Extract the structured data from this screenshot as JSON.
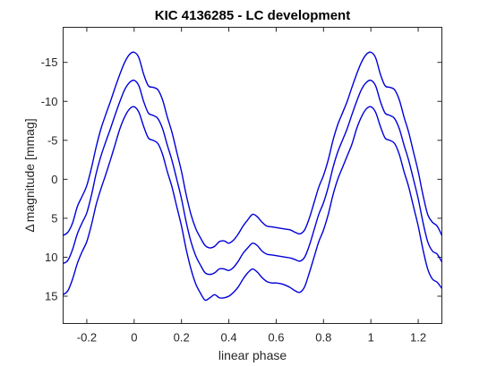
{
  "chart_data": {
    "type": "line",
    "title": "KIC 4136285 - LC development",
    "xlabel": "linear phase",
    "ylabel_symbol": "Δ",
    "ylabel_text": "magnitude [mmag]",
    "xlim": [
      -0.3,
      1.3
    ],
    "ylim": [
      -19.5,
      18.5
    ],
    "y_reversed": true,
    "grid": false,
    "line_color": "#0000d8",
    "xticks": [
      -0.2,
      0,
      0.2,
      0.4,
      0.6,
      0.8,
      1,
      1.2
    ],
    "xtick_labels": [
      "-0.2",
      "0",
      "0.2",
      "0.4",
      "0.6",
      "0.8",
      "1",
      "1.2"
    ],
    "yticks": [
      -15,
      -10,
      -5,
      0,
      5,
      10,
      15
    ],
    "ytick_labels": [
      "-15",
      "-10",
      "-5",
      "0",
      "5",
      "10",
      "15"
    ],
    "series": [
      {
        "x": [
          -0.3,
          -0.28,
          -0.26,
          -0.24,
          -0.22,
          -0.2,
          -0.18,
          -0.16,
          -0.14,
          -0.12,
          -0.1,
          -0.08,
          -0.06,
          -0.04,
          -0.02,
          0,
          0.02,
          0.04,
          0.06,
          0.08,
          0.1,
          0.12,
          0.14,
          0.16,
          0.18,
          0.2,
          0.22,
          0.24,
          0.26,
          0.28,
          0.3,
          0.32,
          0.34,
          0.36,
          0.38,
          0.4,
          0.42,
          0.44,
          0.46,
          0.48,
          0.5,
          0.52,
          0.54,
          0.56,
          0.58,
          0.6,
          0.62,
          0.64,
          0.66,
          0.68,
          0.7,
          0.72,
          0.74,
          0.76,
          0.78,
          0.8,
          0.82,
          0.84,
          0.86,
          0.88,
          0.9,
          0.92,
          0.94,
          0.96,
          0.98,
          1,
          1.02,
          1.04,
          1.06,
          1.08,
          1.1,
          1.12,
          1.14,
          1.16,
          1.18,
          1.2,
          1.22,
          1.24,
          1.26,
          1.28,
          1.3
        ],
        "y": [
          7.2,
          6.8,
          5.6,
          3.5,
          2.2,
          0.8,
          -1.5,
          -4.2,
          -6.5,
          -8.3,
          -10,
          -11.8,
          -13.5,
          -15,
          -16,
          -16.3,
          -15.6,
          -13.5,
          -12,
          -11.8,
          -11.5,
          -10.2,
          -8,
          -6,
          -3.5,
          -1,
          2,
          4.5,
          6.3,
          7.5,
          8.5,
          8.8,
          8.6,
          8,
          7.9,
          8.2,
          7.8,
          7,
          6,
          5.2,
          4.5,
          4.8,
          5.5,
          6,
          6.1,
          6.2,
          6.3,
          6.4,
          6.5,
          6.8,
          7,
          6.5,
          5,
          3,
          1,
          -0.5,
          -2.5,
          -5,
          -7,
          -8.5,
          -10,
          -11.8,
          -13.5,
          -15,
          -16,
          -16.3,
          -15.6,
          -13.5,
          -12,
          -11.8,
          -11.5,
          -10.2,
          -8,
          -6,
          -3.5,
          -1,
          2,
          4.5,
          5.5,
          6,
          7.2
        ]
      },
      {
        "x": [
          -0.3,
          -0.28,
          -0.26,
          -0.24,
          -0.22,
          -0.2,
          -0.18,
          -0.16,
          -0.14,
          -0.12,
          -0.1,
          -0.08,
          -0.06,
          -0.04,
          -0.02,
          0,
          0.02,
          0.04,
          0.06,
          0.08,
          0.1,
          0.12,
          0.14,
          0.16,
          0.18,
          0.2,
          0.22,
          0.24,
          0.26,
          0.28,
          0.3,
          0.32,
          0.34,
          0.36,
          0.38,
          0.4,
          0.42,
          0.44,
          0.46,
          0.48,
          0.5,
          0.52,
          0.54,
          0.56,
          0.58,
          0.6,
          0.62,
          0.64,
          0.66,
          0.68,
          0.7,
          0.72,
          0.74,
          0.76,
          0.78,
          0.8,
          0.82,
          0.84,
          0.86,
          0.88,
          0.9,
          0.92,
          0.94,
          0.96,
          0.98,
          1,
          1.02,
          1.04,
          1.06,
          1.08,
          1.1,
          1.12,
          1.14,
          1.16,
          1.18,
          1.2,
          1.22,
          1.24,
          1.26,
          1.28,
          1.3
        ],
        "y": [
          10.8,
          10.4,
          9,
          7,
          5.6,
          4.3,
          2,
          -0.8,
          -3,
          -4.8,
          -6.5,
          -8.3,
          -10,
          -11.5,
          -12.4,
          -12.7,
          -12,
          -10,
          -8.5,
          -8.2,
          -7.8,
          -6.5,
          -4.4,
          -2.4,
          0,
          2.5,
          5.5,
          8,
          9.8,
          11,
          12,
          12.2,
          12,
          11.5,
          11.5,
          11.7,
          11.3,
          10.5,
          9.5,
          8.8,
          8.2,
          8.5,
          9.2,
          9.6,
          9.7,
          9.8,
          9.9,
          10,
          10.1,
          10.3,
          10.5,
          10,
          8.5,
          6.5,
          4.5,
          3,
          1,
          -1.5,
          -3.5,
          -5,
          -6.5,
          -8.3,
          -10,
          -11.5,
          -12.4,
          -12.7,
          -12,
          -10,
          -8.5,
          -8.2,
          -7.8,
          -6.5,
          -4.4,
          -2.4,
          0,
          2.5,
          5.5,
          8,
          9.2,
          9.6,
          10.6
        ]
      },
      {
        "x": [
          -0.3,
          -0.28,
          -0.26,
          -0.24,
          -0.22,
          -0.2,
          -0.18,
          -0.16,
          -0.14,
          -0.12,
          -0.1,
          -0.08,
          -0.06,
          -0.04,
          -0.02,
          0,
          0.02,
          0.04,
          0.06,
          0.08,
          0.1,
          0.12,
          0.14,
          0.16,
          0.18,
          0.2,
          0.22,
          0.24,
          0.26,
          0.28,
          0.3,
          0.32,
          0.34,
          0.36,
          0.38,
          0.4,
          0.42,
          0.44,
          0.46,
          0.48,
          0.5,
          0.52,
          0.54,
          0.56,
          0.58,
          0.6,
          0.62,
          0.64,
          0.66,
          0.68,
          0.7,
          0.72,
          0.74,
          0.76,
          0.78,
          0.8,
          0.82,
          0.84,
          0.86,
          0.88,
          0.9,
          0.92,
          0.94,
          0.96,
          0.98,
          1,
          1.02,
          1.04,
          1.06,
          1.08,
          1.1,
          1.12,
          1.14,
          1.16,
          1.18,
          1.2,
          1.22,
          1.24,
          1.26,
          1.28,
          1.3
        ],
        "y": [
          14.8,
          14.3,
          12.8,
          10.8,
          9.3,
          8,
          5.8,
          3.2,
          1.2,
          -0.6,
          -2.5,
          -4.5,
          -6.5,
          -8,
          -9,
          -9.3,
          -8.6,
          -6.8,
          -5.3,
          -5,
          -4.6,
          -3.2,
          -1,
          1,
          3.5,
          6,
          9,
          11.5,
          13.4,
          14.6,
          15.5,
          15.2,
          14.8,
          15.2,
          15.2,
          15,
          14.5,
          13.8,
          12.8,
          12,
          11.5,
          11.9,
          12.6,
          13.1,
          13.3,
          13.3,
          13.4,
          13.6,
          13.9,
          14.3,
          14.5,
          13.8,
          12,
          10,
          8,
          6.5,
          4.5,
          2,
          0,
          -1.5,
          -3,
          -4.5,
          -6.5,
          -8,
          -9,
          -9.3,
          -8.6,
          -6.8,
          -5.3,
          -5,
          -4.6,
          -3.2,
          -1,
          1,
          3.5,
          6,
          9,
          11.5,
          12.8,
          13.2,
          14
        ]
      }
    ]
  }
}
